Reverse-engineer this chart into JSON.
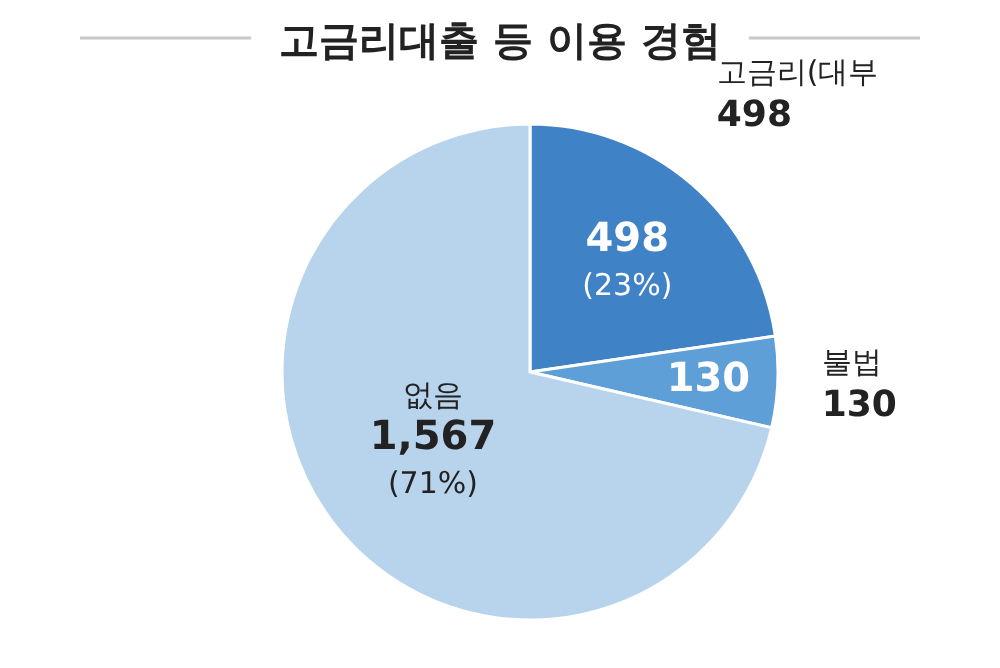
{
  "chart_data": {
    "type": "pie",
    "title": "고금리대출 등 이용 경험",
    "categories": [
      "고금리(대부",
      "불법",
      "없음"
    ],
    "values": [
      498,
      130,
      1567
    ],
    "colors": [
      "#3f82c6",
      "#5f9fd8",
      "#b8d4ec"
    ],
    "value_labels": [
      "498",
      "130",
      "1,567"
    ],
    "annotations": [
      {
        "text": "(23%)",
        "x": "고금리(대부"
      },
      {
        "text": "(71%)",
        "x": "없음"
      }
    ]
  }
}
